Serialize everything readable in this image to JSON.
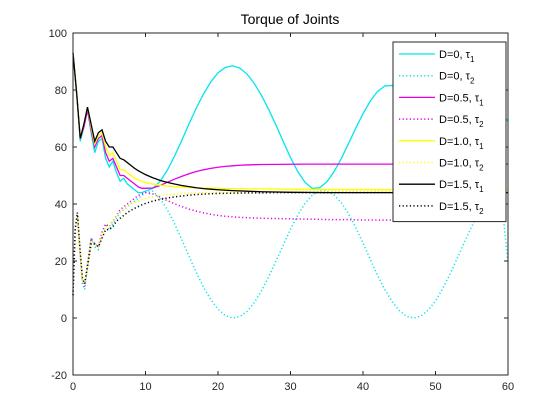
{
  "chart_data": {
    "type": "line",
    "title": "Torque of Joints",
    "xlabel": "",
    "ylabel": "",
    "xlim": [
      0,
      60
    ],
    "ylim": [
      -20,
      100
    ],
    "xticks": [
      0,
      10,
      20,
      30,
      40,
      50,
      60
    ],
    "yticks": [
      -20,
      0,
      20,
      40,
      60,
      80,
      100
    ],
    "grid": false,
    "legend_position": "top-right",
    "series": [
      {
        "name": "D=0, τ1",
        "label_base": "D=0, τ",
        "label_sub": "1",
        "color": "#00e5ee",
        "style": "solid",
        "x": [
          0,
          0.5,
          1,
          1.5,
          2,
          2.5,
          3,
          3.5,
          4,
          4.5,
          5,
          5.5,
          6,
          6.5,
          7,
          7.5,
          8,
          8.5,
          9,
          9.5,
          10,
          11,
          12,
          13,
          14,
          15,
          16,
          17,
          18,
          19,
          20,
          21,
          22,
          23,
          24,
          25,
          26,
          27,
          28,
          29,
          30,
          31,
          32,
          33,
          34,
          35,
          36,
          37,
          38,
          39,
          40,
          41,
          42,
          43,
          44,
          45,
          46,
          47,
          48,
          49,
          50,
          51,
          52,
          53,
          54,
          55,
          56,
          57,
          58,
          59,
          60
        ],
        "y": [
          93,
          79,
          62,
          67,
          73,
          65,
          58,
          62,
          63,
          56,
          53,
          55,
          51,
          48,
          49,
          47,
          46,
          45,
          44,
          44,
          44.5,
          45.5,
          47.9,
          51.8,
          56.8,
          62.3,
          68.1,
          73.6,
          78.6,
          82.8,
          86.0,
          87.9,
          88.5,
          87.7,
          85.6,
          82.3,
          78.1,
          73.1,
          67.7,
          61.9,
          56.3,
          51.4,
          47.6,
          45.5,
          45.7,
          47.7,
          51.3,
          55.9,
          61.2,
          66.6,
          71.7,
          76.1,
          79.5,
          81.4,
          81.6,
          79.9,
          76.6,
          72.0,
          66.5,
          60.7,
          55.3,
          50.7,
          47.7,
          46.8,
          48.3,
          51.9,
          57.0,
          62.8,
          68.3,
          72.6,
          69.0
        ]
      },
      {
        "name": "D=0, τ2",
        "label_base": "D=0, τ",
        "label_sub": "2",
        "color": "#00e5ee",
        "style": "dotted",
        "x": [
          0,
          0.3,
          0.6,
          1,
          1.3,
          1.6,
          2,
          2.5,
          3,
          3.5,
          4,
          4.5,
          5,
          5.5,
          6,
          6.5,
          7,
          7.5,
          8,
          8.5,
          9,
          9.5,
          10,
          11,
          12,
          13,
          14,
          15,
          16,
          17,
          18,
          19,
          20,
          21,
          22,
          23,
          24,
          25,
          26,
          27,
          28,
          29,
          30,
          31,
          32,
          33,
          34,
          35,
          36,
          37,
          38,
          39,
          40,
          41,
          42,
          43,
          44,
          45,
          46,
          47,
          48,
          49,
          50,
          51,
          52,
          53,
          54,
          55,
          56,
          57,
          58,
          59,
          60
        ],
        "y": [
          8,
          31,
          36,
          22,
          12,
          10,
          18,
          28,
          25,
          24,
          30,
          33,
          31,
          33,
          35,
          37,
          38,
          39,
          40,
          41,
          42,
          43,
          44,
          44.5,
          42.0,
          38.1,
          33.1,
          27.5,
          21.7,
          16.0,
          10.8,
          6.5,
          3.1,
          0.9,
          0.0,
          0.5,
          2.3,
          5.4,
          9.6,
          14.5,
          20.0,
          25.6,
          31.1,
          36.1,
          40.2,
          43.1,
          44.6,
          44.7,
          43.2,
          40.5,
          36.6,
          31.7,
          26.3,
          20.6,
          15.0,
          10.0,
          5.8,
          2.6,
          0.6,
          0.0,
          0.7,
          2.8,
          6.0,
          10.4,
          15.4,
          21.0,
          26.7,
          32.1,
          37.0,
          40.8,
          43.4,
          44.5,
          19.0
        ]
      },
      {
        "name": "D=0.5, τ1",
        "label_base": "D=0.5, τ",
        "label_sub": "1",
        "color": "#e600e6",
        "style": "solid",
        "x": [
          0,
          0.5,
          1,
          1.5,
          2,
          2.5,
          3,
          3.5,
          4,
          4.5,
          5,
          5.5,
          6,
          6.5,
          7,
          7.5,
          8,
          8.5,
          9,
          9.5,
          10,
          11,
          12,
          13,
          14,
          15,
          16,
          17,
          18,
          19,
          20,
          21,
          22,
          23,
          24,
          25,
          26,
          28,
          30,
          32,
          34,
          36,
          38,
          40,
          45,
          50,
          55,
          60
        ],
        "y": [
          93,
          79,
          63,
          67,
          73,
          66,
          60,
          63,
          64,
          58,
          55,
          56,
          53,
          50,
          50,
          49,
          48,
          47,
          46,
          45.5,
          45.5,
          45.6,
          46.5,
          47.6,
          48.7,
          49.7,
          50.6,
          51.4,
          52.0,
          52.5,
          52.9,
          53.2,
          53.4,
          53.6,
          53.7,
          53.8,
          53.85,
          53.9,
          53.95,
          54.0,
          54.0,
          54.0,
          54.0,
          54.0,
          54.0,
          54.0,
          54.0,
          54.0
        ]
      },
      {
        "name": "D=0.5, τ2",
        "label_base": "D=0.5, τ",
        "label_sub": "2",
        "color": "#e600e6",
        "style": "dotted",
        "x": [
          0,
          0.3,
          0.6,
          1,
          1.3,
          1.6,
          2,
          2.5,
          3,
          3.5,
          4,
          4.5,
          5,
          5.5,
          6,
          6.5,
          7,
          7.5,
          8,
          8.5,
          9,
          9.5,
          10,
          11,
          12,
          13,
          14,
          15,
          16,
          17,
          18,
          19,
          20,
          21,
          22,
          23,
          24,
          25,
          26,
          28,
          30,
          32,
          34,
          36,
          38,
          40,
          45,
          50,
          55,
          60
        ],
        "y": [
          8,
          31,
          36,
          22,
          13,
          11,
          19,
          28,
          26,
          25,
          30,
          33,
          32,
          34,
          36,
          38,
          39,
          40,
          41,
          42,
          43,
          43.5,
          44,
          43.5,
          42.4,
          41.2,
          40.1,
          39.1,
          38.2,
          37.5,
          36.9,
          36.4,
          36.0,
          35.7,
          35.5,
          35.3,
          35.2,
          35.1,
          35.0,
          34.9,
          34.8,
          34.7,
          34.6,
          34.5,
          34.5,
          34.4,
          34.3,
          34.2,
          34.1,
          34.0
        ]
      },
      {
        "name": "D=1.0, τ1",
        "label_base": "D=1.0, τ",
        "label_sub": "1",
        "color": "#ffff00",
        "style": "solid",
        "x": [
          0,
          0.5,
          1,
          1.5,
          2,
          2.5,
          3,
          3.5,
          4,
          4.5,
          5,
          5.5,
          6,
          6.5,
          7,
          7.5,
          8,
          8.5,
          9,
          9.5,
          10,
          11,
          12,
          13,
          14,
          15,
          16,
          18,
          20,
          22,
          25,
          30,
          35,
          40,
          45,
          50,
          55,
          60
        ],
        "y": [
          93,
          79,
          63,
          68,
          74,
          67,
          61,
          64,
          65,
          60,
          57,
          58,
          55,
          52,
          52,
          51,
          50,
          49,
          48.5,
          48,
          47.5,
          47,
          46.6,
          46.3,
          46.1,
          45.9,
          45.8,
          45.6,
          45.5,
          45.4,
          45.3,
          45.2,
          45.1,
          45.1,
          45.0,
          45.0,
          45.0,
          45.0
        ]
      },
      {
        "name": "D=1.0, τ2",
        "label_base": "D=1.0, τ",
        "label_sub": "2",
        "color": "#ffff00",
        "style": "dotted",
        "x": [
          0,
          0.3,
          0.6,
          1,
          1.3,
          1.6,
          2,
          2.5,
          3,
          3.5,
          4,
          4.5,
          5,
          5.5,
          6,
          6.5,
          7,
          7.5,
          8,
          8.5,
          9,
          9.5,
          10,
          11,
          12,
          13,
          14,
          15,
          16,
          18,
          20,
          22,
          25,
          30,
          35,
          40,
          45,
          50,
          55,
          60
        ],
        "y": [
          8,
          31,
          36,
          22,
          13,
          12,
          19,
          27,
          26,
          25,
          29,
          32,
          32,
          34,
          36,
          37,
          38,
          39,
          40,
          40.5,
          41,
          41.5,
          42,
          42.5,
          43,
          43.3,
          43.5,
          43.7,
          43.8,
          44,
          44.1,
          44.2,
          44.3,
          44.4,
          44.5,
          44.5,
          44.5,
          44.5,
          44.5,
          44.5
        ]
      },
      {
        "name": "D=1.5, τ1",
        "label_base": "D=1.5, τ",
        "label_sub": "1",
        "color": "#000000",
        "style": "solid",
        "x": [
          0,
          0.5,
          1,
          1.5,
          2,
          2.5,
          3,
          3.5,
          4,
          4.5,
          5,
          5.5,
          6,
          6.5,
          7,
          7.5,
          8,
          8.5,
          9,
          9.5,
          10,
          11,
          12,
          13,
          14,
          15,
          16,
          17,
          18,
          19,
          20,
          22,
          24,
          26,
          28,
          30,
          35,
          40,
          45,
          50,
          55,
          60
        ],
        "y": [
          93,
          79,
          63,
          68,
          74,
          68,
          62,
          65,
          66,
          62,
          60,
          60,
          58,
          56,
          55.5,
          54.5,
          53.5,
          52.5,
          51.7,
          51,
          50.3,
          49.2,
          48.3,
          47.6,
          47.0,
          46.5,
          46.1,
          45.7,
          45.4,
          45.2,
          45.0,
          44.7,
          44.5,
          44.3,
          44.2,
          44.1,
          44.0,
          44.0,
          44.0,
          44.0,
          44.0,
          44.0
        ]
      },
      {
        "name": "D=1.5, τ2",
        "label_base": "D=1.5, τ",
        "label_sub": "2",
        "color": "#000000",
        "style": "dotted",
        "x": [
          0,
          0.3,
          0.6,
          1,
          1.3,
          1.6,
          2,
          2.5,
          3,
          3.5,
          4,
          4.5,
          5,
          5.5,
          6,
          6.5,
          7,
          7.5,
          8,
          8.5,
          9,
          9.5,
          10,
          11,
          12,
          13,
          14,
          15,
          16,
          17,
          18,
          19,
          20,
          22,
          24,
          26,
          28,
          30,
          35,
          40,
          45,
          50,
          55,
          60
        ],
        "y": [
          8,
          31,
          37,
          23,
          14,
          12,
          18,
          26,
          26,
          25,
          28,
          31,
          31,
          32,
          34,
          35,
          36,
          37,
          37.8,
          38.5,
          39.1,
          39.7,
          40.2,
          41.0,
          41.6,
          42.1,
          42.5,
          42.8,
          43.1,
          43.3,
          43.5,
          43.6,
          43.7,
          43.8,
          43.9,
          43.9,
          44.0,
          44.0,
          44.0,
          44.0,
          44.0,
          44.0,
          44.0,
          44.0
        ]
      }
    ]
  }
}
